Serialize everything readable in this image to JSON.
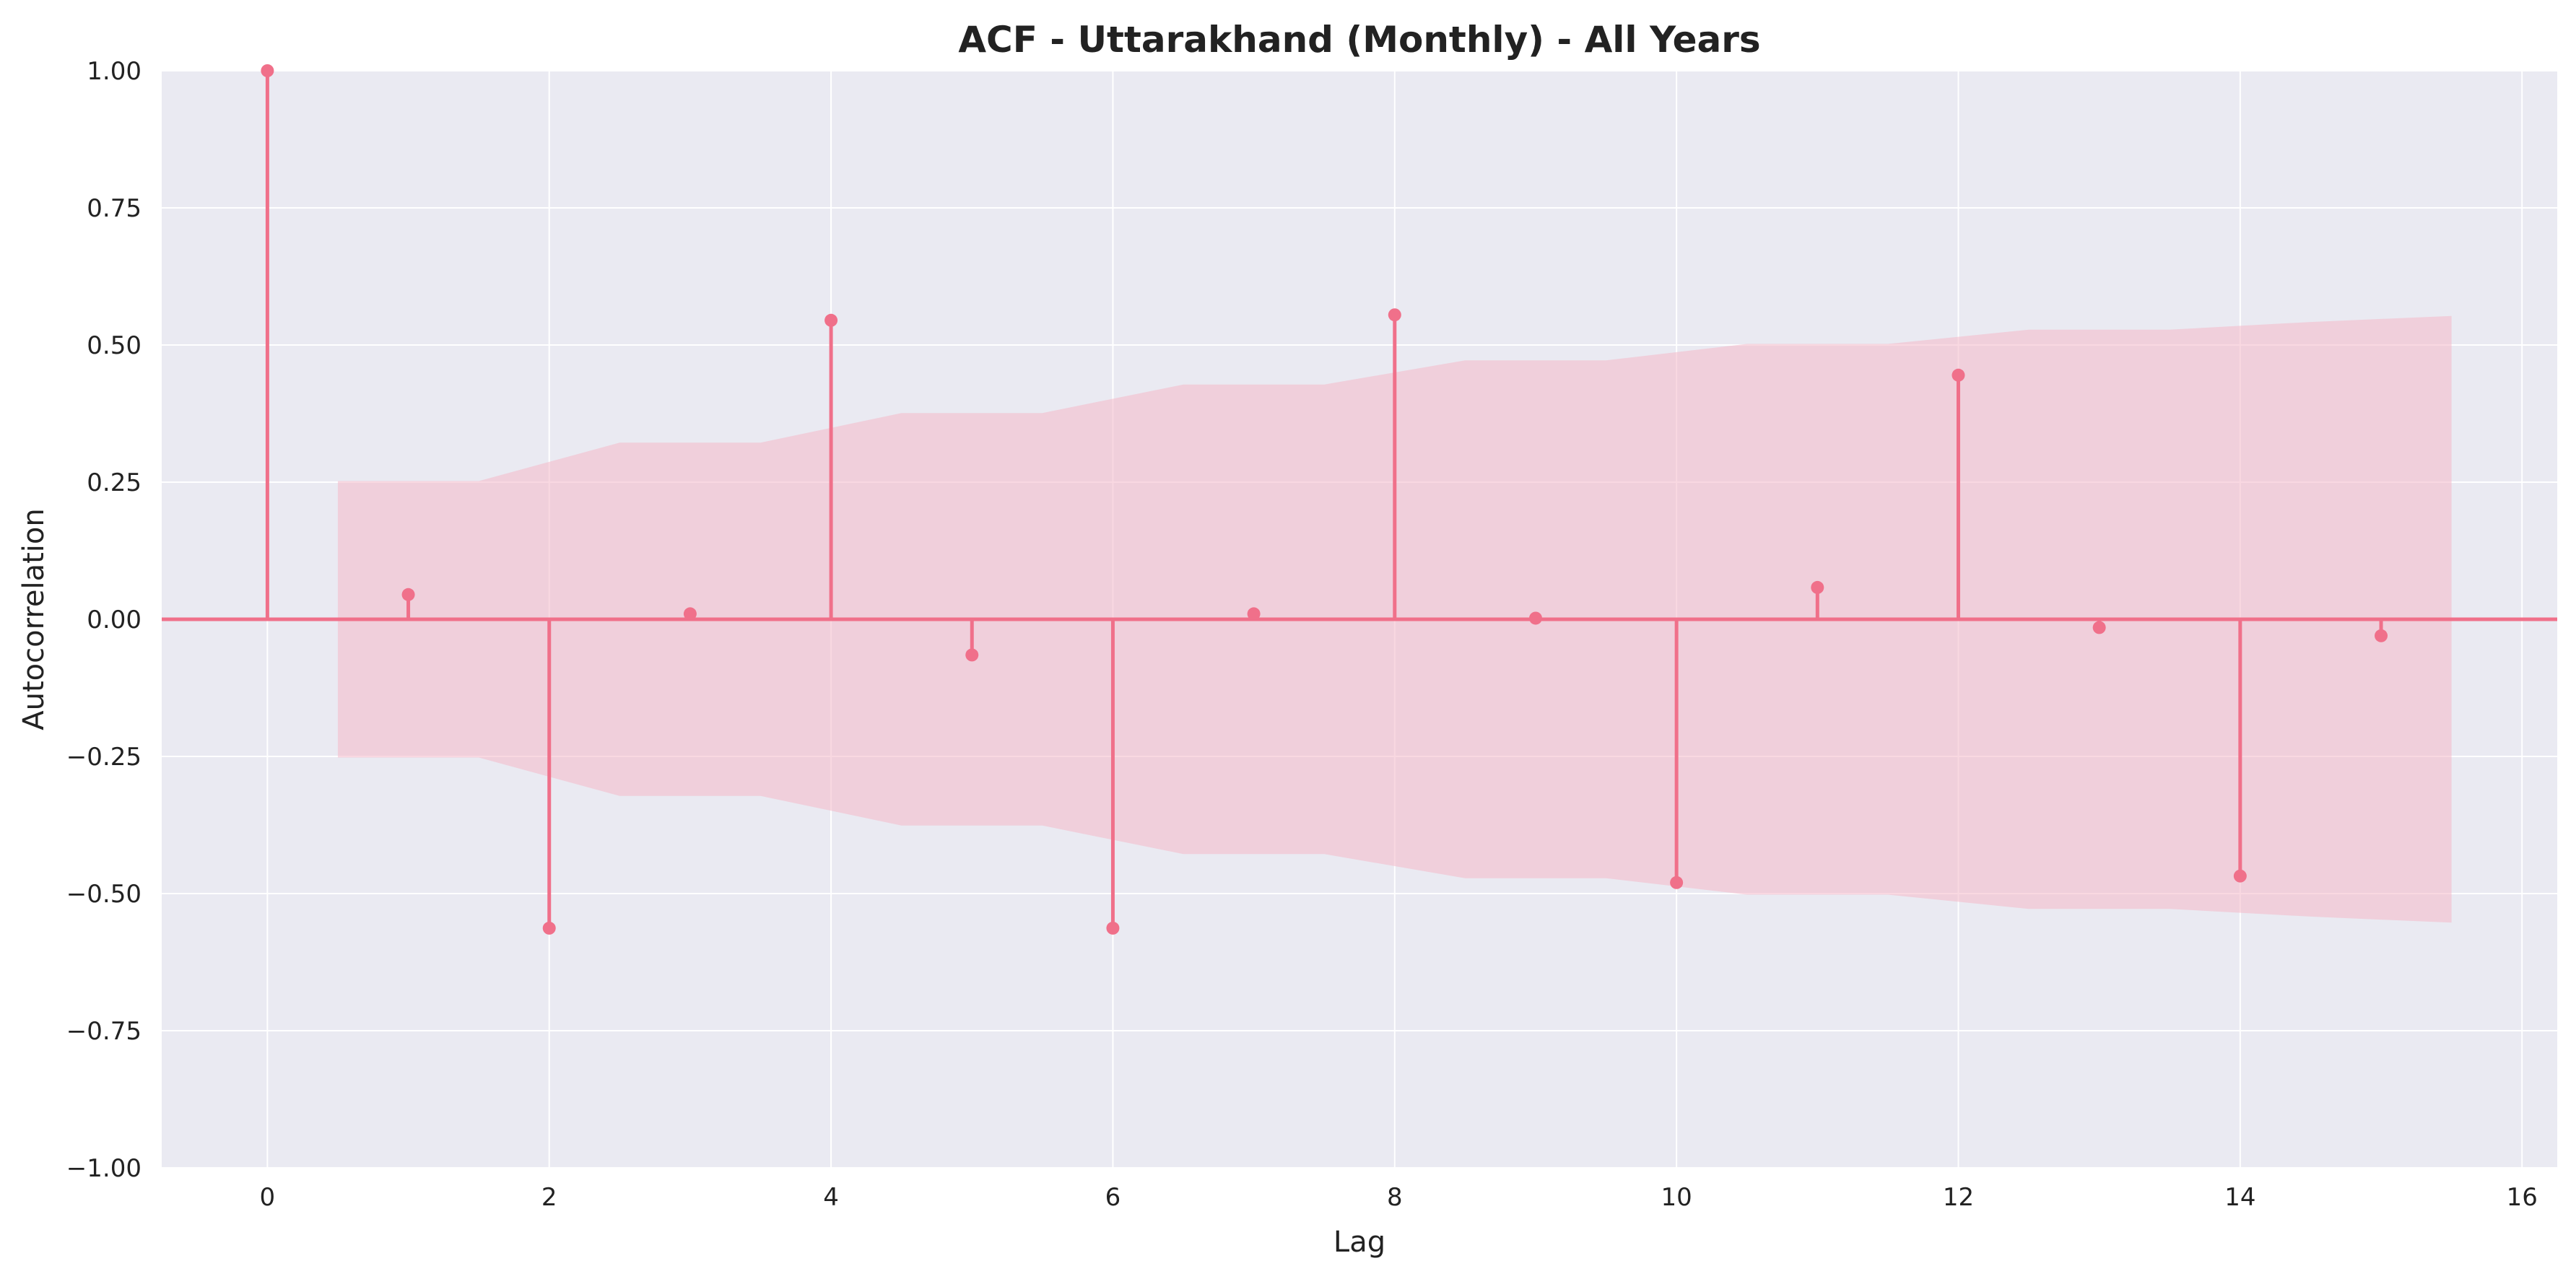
{
  "chart_data": {
    "type": "stem",
    "title": "ACF - Uttarakhand (Monthly) - All Years",
    "xlabel": "Lag",
    "ylabel": "Autocorrelation",
    "xlim": [
      -0.75,
      16.25
    ],
    "ylim": [
      -1.0,
      1.0
    ],
    "xticks": [
      0,
      2,
      4,
      6,
      8,
      10,
      12,
      14,
      16
    ],
    "yticks": [
      1.0,
      0.75,
      0.5,
      0.25,
      0.0,
      -0.25,
      -0.5,
      -0.75,
      -1.0
    ],
    "xtick_labels": [
      "0",
      "2",
      "4",
      "6",
      "8",
      "10",
      "12",
      "14",
      "16"
    ],
    "ytick_labels": [
      "1.00",
      "0.75",
      "0.50",
      "0.25",
      "0.00",
      "−0.25",
      "−0.50",
      "−0.75",
      "−1.00"
    ],
    "grid": true,
    "lags": [
      0,
      1,
      2,
      3,
      4,
      5,
      6,
      7,
      8,
      9,
      10,
      11,
      12,
      13,
      14,
      15
    ],
    "values": [
      1.0,
      0.045,
      -0.563,
      0.01,
      0.545,
      -0.065,
      -0.563,
      0.01,
      0.555,
      0.002,
      -0.48,
      0.058,
      0.445,
      -0.015,
      -0.468,
      -0.03
    ],
    "confidence_band": {
      "x": [
        0.5,
        1.5,
        2.5,
        3.5,
        4.5,
        5.5,
        6.5,
        7.5,
        8.5,
        9.5,
        10.5,
        11.5,
        12.5,
        13.5,
        14.5,
        15.5
      ],
      "upper": [
        0.252,
        0.252,
        0.322,
        0.322,
        0.376,
        0.376,
        0.428,
        0.428,
        0.472,
        0.472,
        0.502,
        0.502,
        0.528,
        0.528,
        0.542,
        0.553
      ]
    },
    "colors": {
      "stem": "#f0708a",
      "marker": "#f0708a",
      "band": "#f4b8c8",
      "plot_background": "#eaeaf2",
      "grid": "#ffffff"
    }
  }
}
